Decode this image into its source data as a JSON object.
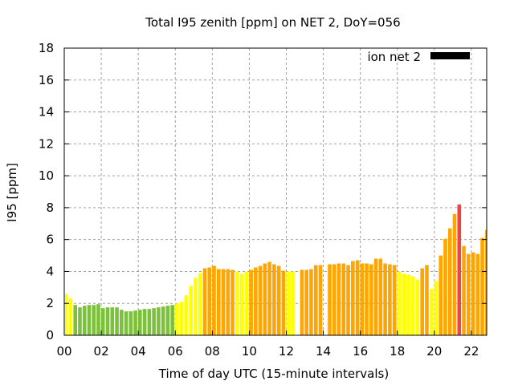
{
  "chart_data": {
    "type": "bar",
    "title": "Total I95 zenith [ppm] on NET 2, DoY=056",
    "xlabel": "Time of day UTC (15-minute intervals)",
    "ylabel": "I95 [ppm]",
    "xlim": [
      0,
      22.83
    ],
    "ylim": [
      0,
      18
    ],
    "xticks": [
      "00",
      "02",
      "04",
      "06",
      "08",
      "10",
      "12",
      "14",
      "16",
      "18",
      "20",
      "22"
    ],
    "yticks": [
      "0",
      "2",
      "4",
      "6",
      "8",
      "10",
      "12",
      "14",
      "16",
      "18"
    ],
    "grid": true,
    "legend": {
      "label": "ion net 2",
      "placement": "top-right",
      "color": "#000000"
    },
    "interval_hours": 0.25,
    "color_thresholds": [
      {
        "max": 2,
        "color": "#7cc13a"
      },
      {
        "max": 4,
        "color": "#ffff00"
      },
      {
        "max": 8,
        "color": "#ffa500"
      },
      {
        "max": 100,
        "color": "#ee4444"
      }
    ],
    "values": [
      2.6,
      2.3,
      1.9,
      1.75,
      1.85,
      1.9,
      1.9,
      1.95,
      1.7,
      1.75,
      1.75,
      1.75,
      1.6,
      1.5,
      1.5,
      1.55,
      1.6,
      1.65,
      1.65,
      1.7,
      1.75,
      1.8,
      1.85,
      1.9,
      2.0,
      2.1,
      2.5,
      3.1,
      3.6,
      3.9,
      4.2,
      4.25,
      4.35,
      4.15,
      4.15,
      4.15,
      4.1,
      3.99,
      3.85,
      3.99,
      4.1,
      4.25,
      4.35,
      4.5,
      4.6,
      4.45,
      4.35,
      4.05,
      3.99,
      3.99,
      null,
      4.1,
      4.1,
      4.15,
      4.4,
      4.4,
      null,
      4.45,
      4.45,
      4.5,
      4.5,
      4.4,
      4.65,
      4.7,
      4.5,
      4.5,
      4.45,
      4.8,
      4.8,
      4.5,
      4.45,
      4.4,
      3.99,
      3.85,
      3.8,
      3.7,
      3.5,
      4.2,
      4.4,
      2.9,
      3.4,
      5.0,
      6.05,
      6.7,
      7.6,
      8.2,
      5.6,
      5.1,
      5.2,
      5.1,
      6.1,
      6.6
    ]
  }
}
